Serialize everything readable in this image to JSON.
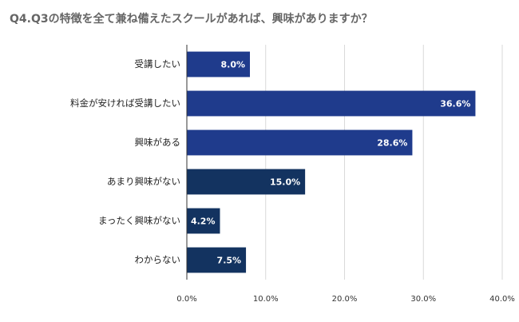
{
  "chart_data": {
    "type": "hbar",
    "title": "Q4.Q3の特徴を全て兼ね備えたスクールがあれば、興味がありますか？",
    "categories": [
      "受講したい",
      "料金が安ければ受講したい",
      "興味がある",
      "あまり興味がない",
      "まったく興味がない",
      "わからない"
    ],
    "values": [
      8.0,
      36.6,
      28.6,
      15.0,
      4.2,
      7.5
    ],
    "value_labels": [
      "8.0%",
      "36.6%",
      "28.6%",
      "15.0%",
      "4.2%",
      "7.5%"
    ],
    "colors": [
      "#1f3b8c",
      "#1f3b8c",
      "#1f3b8c",
      "#133360",
      "#133360",
      "#133360"
    ],
    "xlim": [
      0,
      40
    ],
    "xticks": [
      {
        "value": 0,
        "label": "0.0%"
      },
      {
        "value": 10,
        "label": "10.0%"
      },
      {
        "value": 20,
        "label": "20.0%"
      },
      {
        "value": 30,
        "label": "30.0%"
      },
      {
        "value": 40,
        "label": "40.0%"
      }
    ],
    "grid": true
  }
}
